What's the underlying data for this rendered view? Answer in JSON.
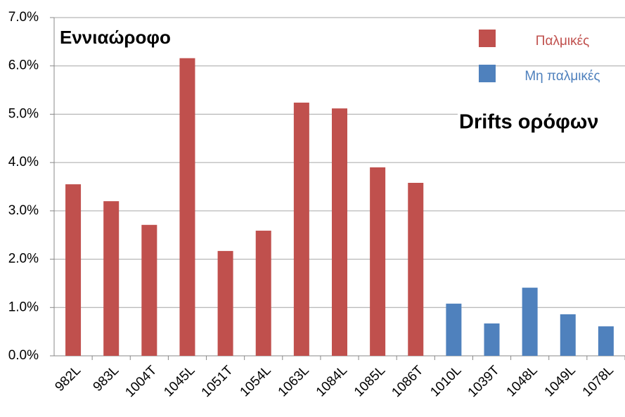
{
  "chart_data": {
    "type": "bar",
    "annotations": [
      "Εννιαώροφο",
      "Drifts ορόφων"
    ],
    "categories": [
      "982L",
      "983L",
      "1004T",
      "1045L",
      "1051T",
      "1054L",
      "1063L",
      "1084L",
      "1085L",
      "1086T",
      "1010L",
      "1039T",
      "1048L",
      "1049L",
      "1078L"
    ],
    "series": [
      {
        "name": "Παλμικές",
        "color": "#c0504d",
        "values": [
          3.55,
          3.2,
          2.71,
          6.16,
          2.17,
          2.59,
          5.24,
          5.12,
          3.9,
          3.58,
          null,
          null,
          null,
          null,
          null
        ]
      },
      {
        "name": "Μη παλμικές",
        "color": "#4f81bd",
        "values": [
          null,
          null,
          null,
          null,
          null,
          null,
          null,
          null,
          null,
          null,
          1.08,
          0.67,
          1.41,
          0.86,
          0.61
        ]
      }
    ],
    "ylim": [
      0,
      7
    ],
    "yticks": [
      {
        "value": 0,
        "label": "0.0%"
      },
      {
        "value": 1,
        "label": "1.0%"
      },
      {
        "value": 2,
        "label": "2.0%"
      },
      {
        "value": 3,
        "label": "3.0%"
      },
      {
        "value": 4,
        "label": "4.0%"
      },
      {
        "value": 5,
        "label": "5.0%"
      },
      {
        "value": 6,
        "label": "6.0%"
      },
      {
        "value": 7,
        "label": "7.0%"
      }
    ],
    "grid": true,
    "legend": "top-right"
  }
}
